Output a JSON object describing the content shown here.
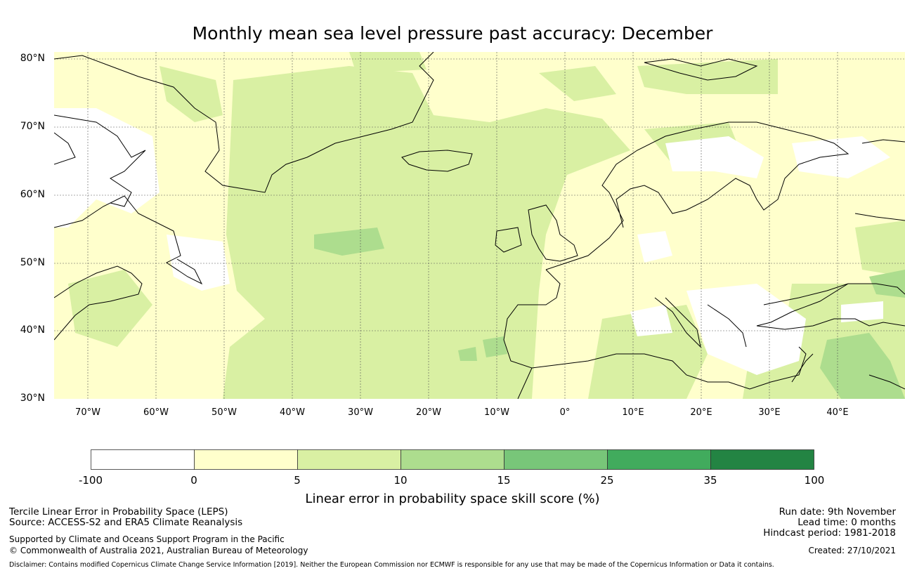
{
  "title": "Monthly mean sea level pressure past accuracy: December",
  "map": {
    "lat_labels": [
      "80°N",
      "70°N",
      "60°N",
      "50°N",
      "40°N",
      "30°N"
    ],
    "lon_labels": [
      "70°W",
      "60°W",
      "50°W",
      "40°W",
      "30°W",
      "20°W",
      "10°W",
      "0°",
      "10°E",
      "20°E",
      "30°E",
      "40°E"
    ],
    "extent": {
      "lon_min": -75,
      "lon_max": 50,
      "lat_min": 30,
      "lat_max": 81
    }
  },
  "colorbar": {
    "ticks": [
      "-100",
      "0",
      "5",
      "10",
      "15",
      "25",
      "35",
      "100"
    ],
    "colors": [
      "#ffffff",
      "#ffffcc",
      "#d9f0a3",
      "#addd8e",
      "#78c679",
      "#41ab5d",
      "#238443"
    ],
    "label": "Linear error in probability space skill score (%)"
  },
  "footer": {
    "left_line1": "Tercile Linear Error in Probability Space (LEPS)",
    "left_line2": "Source: ACCESS-S2 and ERA5 Climate Reanalysis",
    "left_line3": "Supported by Climate and Oceans Support Program in the Pacific",
    "left_line4": "© Commonwealth of Australia 2021, Australian Bureau of Meteorology",
    "right_line1": "Run date: 9th November",
    "right_line2": "Lead time: 0 months",
    "right_line3": "Hindcast period: 1981-2018",
    "right_line4": "Created: 27/10/2021",
    "disclaimer": "Disclaimer: Contains modified Copernicus Climate Change Service Information [2019]. Neither the European Commission nor ECMWF is responsible for any use that may be made of the Copernicus Information or Data it contains."
  }
}
